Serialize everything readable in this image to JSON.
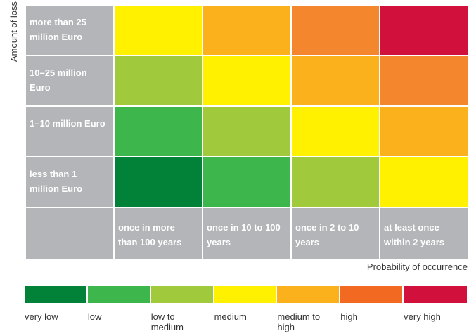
{
  "chart_data": {
    "type": "heatmap",
    "ylabel": "Amount of loss",
    "xlabel": "Probability of occurrence",
    "rows": [
      "more than 25 million Euro",
      "10–25 million Euro",
      "1–10 million Euro",
      "less than 1 million Euro"
    ],
    "columns": [
      "once in more than 100 years",
      "once in 10 to 100 years",
      "once in 2 to 10 years",
      "at least once within 2 years"
    ],
    "levels": [
      "very low",
      "low",
      "low to medium",
      "medium",
      "medium to high",
      "high",
      "very high"
    ],
    "level_colors": [
      "#028139",
      "#3db74b",
      "#a0c93c",
      "#fff100",
      "#fbb11b",
      "#f4862e",
      "#d2103c"
    ],
    "scale_colors": [
      "#028139",
      "#3db74b",
      "#a0c93c",
      "#fff100",
      "#fbb11b",
      "#f26a21",
      "#d2103c"
    ],
    "matrix": [
      [
        3,
        4,
        5,
        6
      ],
      [
        2,
        3,
        4,
        5
      ],
      [
        1,
        2,
        3,
        4
      ],
      [
        0,
        1,
        2,
        3
      ]
    ],
    "label_bg_color": "#b4b5b9"
  }
}
